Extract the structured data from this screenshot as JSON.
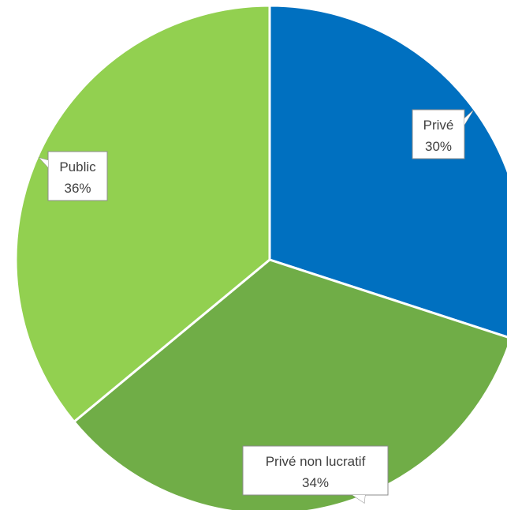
{
  "chart_data": {
    "type": "pie",
    "title": "",
    "legend": "none",
    "start_angle_deg": 0,
    "direction": "clockwise",
    "slices": [
      {
        "label": "Privé",
        "value": 30,
        "display": "30%",
        "color": "#0070c0"
      },
      {
        "label": "Privé non lucratif",
        "value": 34,
        "display": "34%",
        "color": "#70ad47"
      },
      {
        "label": "Public",
        "value": 36,
        "display": "36%",
        "color": "#92d050"
      }
    ]
  }
}
